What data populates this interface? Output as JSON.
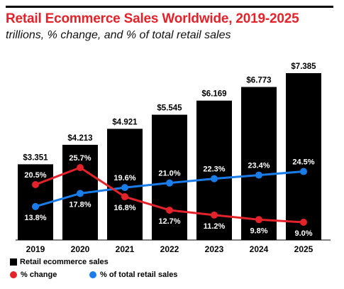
{
  "header": {
    "title": "Retail Ecommerce Sales Worldwide, 2019-2025",
    "subtitle": "trillions, % change, and % of total retail sales"
  },
  "chart_data": {
    "type": "bar",
    "title": "Retail Ecommerce Sales Worldwide, 2019-2025",
    "subtitle": "trillions, % change, and % of total retail sales",
    "categories": [
      "2019",
      "2020",
      "2021",
      "2022",
      "2023",
      "2024",
      "2025"
    ],
    "series": [
      {
        "name": "Retail ecommerce sales",
        "type": "bar",
        "color": "#000000",
        "values": [
          3.351,
          4.213,
          4.921,
          5.545,
          6.169,
          6.773,
          7.385
        ],
        "labels": [
          "$3.351",
          "$4.213",
          "$4.921",
          "$5.545",
          "$6.169",
          "$6.773",
          "$7.385"
        ]
      },
      {
        "name": "% change",
        "type": "line",
        "color": "#e4222a",
        "values": [
          20.5,
          25.7,
          16.8,
          12.7,
          11.2,
          9.8,
          9.0
        ],
        "labels": [
          "20.5%",
          "25.7%",
          "16.8%",
          "12.7%",
          "11.2%",
          "9.8%",
          "9.0%"
        ]
      },
      {
        "name": "% of total retail sales",
        "type": "line",
        "color": "#1a7ce8",
        "values": [
          13.8,
          17.8,
          19.6,
          21.0,
          22.3,
          23.4,
          24.5
        ],
        "labels": [
          "13.8%",
          "17.8%",
          "19.6%",
          "21.0%",
          "22.3%",
          "23.4%",
          "24.5%"
        ]
      }
    ],
    "legend": "bottom-left",
    "grid": false
  }
}
